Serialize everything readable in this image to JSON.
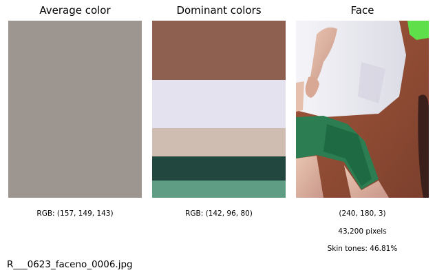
{
  "panels": {
    "average": {
      "title": "Average color",
      "color": "#9d958f",
      "caption": "RGB: (157, 149, 143)"
    },
    "dominant": {
      "title": "Dominant colors",
      "caption": "RGB: (142, 96, 80)",
      "bands": [
        {
          "color": "#8e6050",
          "share": 0.336
        },
        {
          "color": "#e4e2ef",
          "share": 0.272
        },
        {
          "color": "#cfbdb2",
          "share": 0.16
        },
        {
          "color": "#22473e",
          "share": 0.136
        },
        {
          "color": "#5f9e84",
          "share": 0.096
        }
      ]
    },
    "face": {
      "title": "Face",
      "caption_rgb": "(240, 180, 3)",
      "caption_pixels": "43,200 pixels",
      "caption_skin": "Skin tones: 46.81%"
    }
  },
  "footer": {
    "filename": "R___0623_faceno_0006.jpg"
  }
}
